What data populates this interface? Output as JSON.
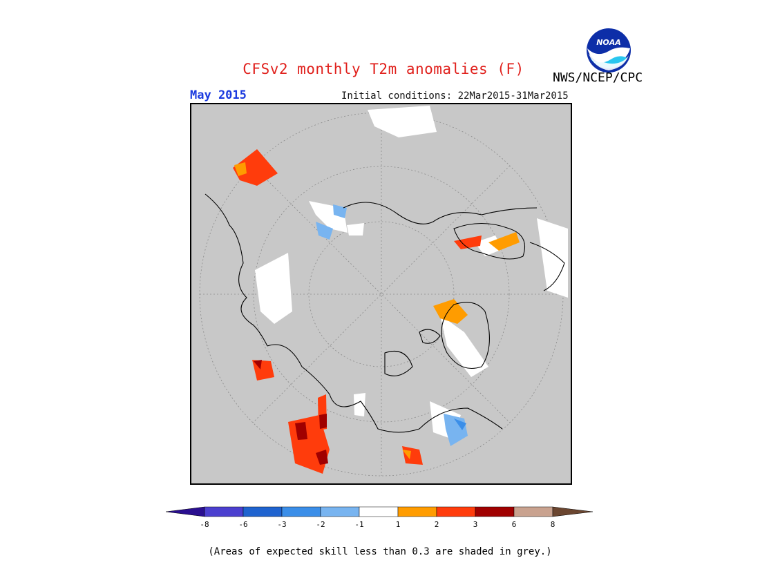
{
  "title": "CFSv2 monthly T2m anomalies (F)",
  "period": "May 2015",
  "initial_conditions": "Initial conditions: 22Mar2015-31Mar2015",
  "agency": "NWS/NCEP/CPC",
  "logo_text": "NOAA",
  "note": "(Areas of expected skill less than 0.3 are shaded in grey.)",
  "colors": {
    "background": "#c8c8c8",
    "scale": [
      "#2a0f90",
      "#4b3fcf",
      "#1f63cf",
      "#3b8ee8",
      "#78b4f0",
      "#ffffff",
      "#ff9c00",
      "#ff3c0c",
      "#a00000",
      "#c9a28f",
      "#6b4630"
    ]
  },
  "legend": {
    "tick_labels": [
      "-8",
      "-6",
      "-3",
      "-2",
      "-1",
      "1",
      "2",
      "3",
      "6",
      "8"
    ]
  }
}
